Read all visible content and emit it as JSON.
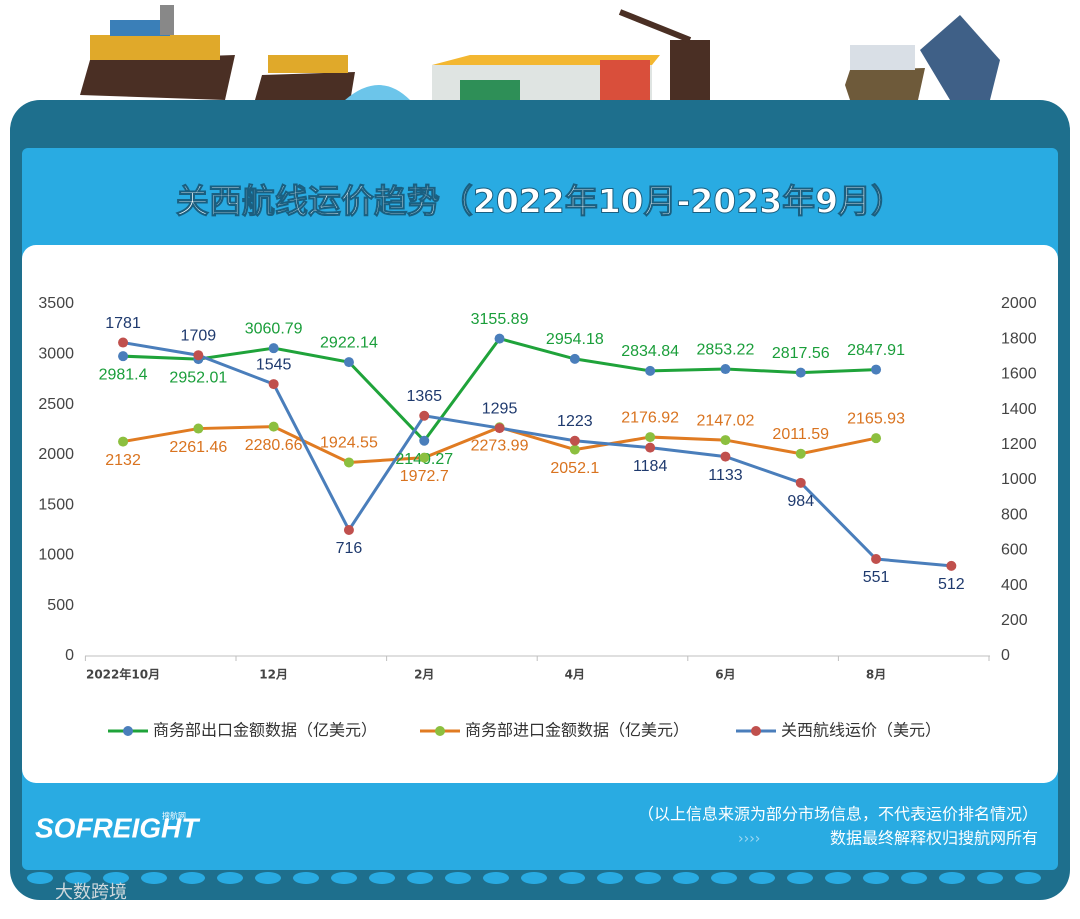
{
  "chart_data": {
    "type": "line",
    "title": "关西航线运价趋势（2022年10月-2023年9月）",
    "categories": [
      "2022年10月",
      null,
      "12月",
      null,
      "2月",
      null,
      "4月",
      null,
      "6月",
      null,
      "8月",
      null
    ],
    "series": [
      {
        "name": "商务部出口金额数据（亿美元）",
        "color": "#1fa33a",
        "marker_color": "#4a7ebb",
        "label_color": "#1a9e3a",
        "values": [
          2981.4,
          2952.01,
          3060.79,
          2922.14,
          2140.27,
          3155.89,
          2954.18,
          2834.84,
          2853.22,
          2817.56,
          2847.91,
          null
        ]
      },
      {
        "name": "商务部进口金额数据（亿美元）",
        "color": "#e07b22",
        "marker_color": "#8cbf3f",
        "label_color": "#d9731f",
        "values": [
          2132,
          2261.46,
          2280.66,
          1924.55,
          1972.7,
          2273.99,
          2052.1,
          2176.92,
          2147.02,
          2011.59,
          2165.93,
          null
        ]
      },
      {
        "name": "关西航线运价（美元）",
        "color": "#4a7ebb",
        "marker_color": "#c0504d",
        "label_color": "#1f3a6e",
        "axis": "y2",
        "values": [
          1781,
          1709,
          1545,
          716,
          1365,
          1295,
          1223,
          1184,
          1133,
          984,
          551,
          512
        ]
      }
    ],
    "ylim": [
      0,
      3500
    ],
    "yticks": [
      0,
      500,
      1000,
      1500,
      2000,
      2500,
      3000,
      3500
    ],
    "y2lim": [
      0,
      2000
    ],
    "y2ticks": [
      0,
      200,
      400,
      600,
      800,
      1000,
      1200,
      1400,
      1600,
      1800,
      2000
    ],
    "grid": false,
    "legend": "bottom"
  },
  "footer": {
    "note": "（以上信息来源为部分市场信息，不代表运价排名情况）",
    "rights": "数据最终解释权归搜航网所有"
  },
  "logo": {
    "name": "SOFREIGHT",
    "sub": "搜航网"
  },
  "watermark": "大数跨境"
}
